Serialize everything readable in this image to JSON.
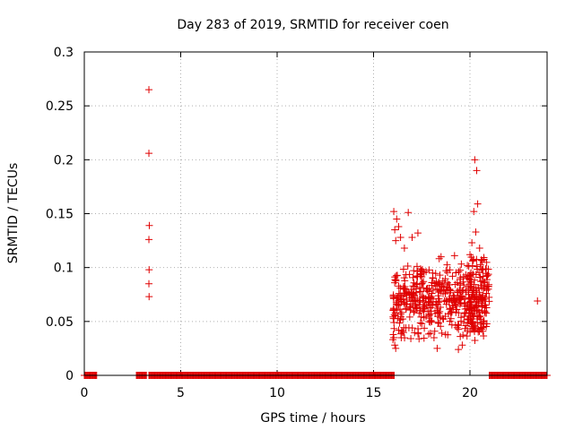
{
  "chart_data": {
    "type": "scatter",
    "title": "Day 283 of 2019, SRMTID for receiver coen",
    "xlabel": "GPS time / hours",
    "ylabel": "SRMTID / TECUs",
    "xlim": [
      0,
      24
    ],
    "ylim": [
      0,
      0.3
    ],
    "x_ticks": [
      0,
      5,
      10,
      15,
      20
    ],
    "y_ticks": [
      0,
      0.05,
      0.1,
      0.15,
      0.2,
      0.25,
      0.3
    ],
    "x_tick_labels": [
      "0",
      "5",
      "10",
      "15",
      "20"
    ],
    "y_tick_labels": [
      "0",
      "0.05",
      "0.1",
      "0.15",
      "0.2",
      "0.25",
      "0.3"
    ],
    "grid": true,
    "marker": "+",
    "series_color": "#e00000",
    "zero_segments": [
      [
        0.0,
        0.65
      ],
      [
        2.7,
        3.25
      ],
      [
        3.35,
        16.1
      ],
      [
        21.0,
        24.0
      ]
    ],
    "sparse_points": [
      [
        3.35,
        0.265
      ],
      [
        3.35,
        0.206
      ],
      [
        3.37,
        0.139
      ],
      [
        3.35,
        0.126
      ],
      [
        3.36,
        0.098
      ],
      [
        3.35,
        0.085
      ],
      [
        3.36,
        0.073
      ],
      [
        23.5,
        0.069
      ]
    ],
    "dense_points": [
      [
        16.05,
        0.152
      ],
      [
        16.1,
        0.135
      ],
      [
        16.2,
        0.145
      ],
      [
        16.3,
        0.138
      ],
      [
        16.15,
        0.125
      ],
      [
        16.4,
        0.128
      ],
      [
        16.6,
        0.118
      ],
      [
        16.8,
        0.151
      ],
      [
        17.0,
        0.128
      ],
      [
        17.3,
        0.132
      ],
      [
        20.25,
        0.2
      ],
      [
        20.35,
        0.19
      ],
      [
        20.4,
        0.159
      ],
      [
        20.2,
        0.152
      ],
      [
        20.3,
        0.133
      ],
      [
        20.1,
        0.123
      ],
      [
        20.5,
        0.118
      ],
      [
        20.0,
        0.112
      ],
      [
        19.2,
        0.111
      ],
      [
        18.5,
        0.11
      ],
      [
        16.05,
        0.035
      ],
      [
        16.1,
        0.028
      ],
      [
        16.15,
        0.025
      ],
      [
        16.3,
        0.042
      ],
      [
        16.5,
        0.04
      ],
      [
        18.3,
        0.025
      ],
      [
        19.4,
        0.024
      ],
      [
        19.6,
        0.028
      ]
    ],
    "dense_cluster": {
      "x_range": [
        16.0,
        21.0
      ],
      "y_range": [
        0.03,
        0.11
      ],
      "count": 520,
      "count_late_high": 60
    }
  }
}
